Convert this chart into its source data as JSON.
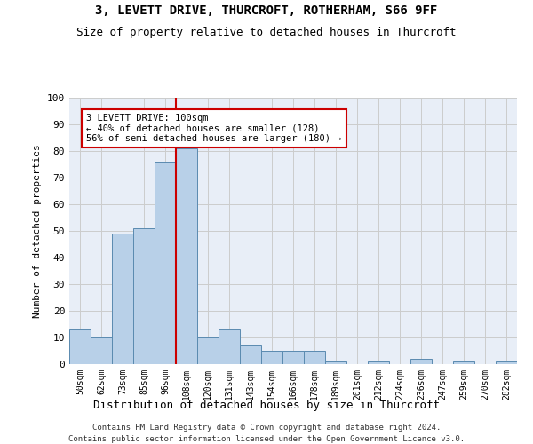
{
  "title": "3, LEVETT DRIVE, THURCROFT, ROTHERHAM, S66 9FF",
  "subtitle": "Size of property relative to detached houses in Thurcroft",
  "xlabel": "Distribution of detached houses by size in Thurcroft",
  "ylabel": "Number of detached properties",
  "bar_color": "#b8d0e8",
  "bar_edge_color": "#5a8ab0",
  "categories": [
    "50sqm",
    "62sqm",
    "73sqm",
    "85sqm",
    "96sqm",
    "108sqm",
    "120sqm",
    "131sqm",
    "143sqm",
    "154sqm",
    "166sqm",
    "178sqm",
    "189sqm",
    "201sqm",
    "212sqm",
    "224sqm",
    "236sqm",
    "247sqm",
    "259sqm",
    "270sqm",
    "282sqm"
  ],
  "values": [
    13,
    10,
    49,
    51,
    76,
    81,
    10,
    13,
    7,
    5,
    5,
    5,
    1,
    0,
    1,
    0,
    2,
    0,
    1,
    0,
    1
  ],
  "annotation_text": "3 LEVETT DRIVE: 100sqm\n← 40% of detached houses are smaller (128)\n56% of semi-detached houses are larger (180) →",
  "annotation_box_color": "#cc0000",
  "ylim": [
    0,
    100
  ],
  "yticks": [
    0,
    10,
    20,
    30,
    40,
    50,
    60,
    70,
    80,
    90,
    100
  ],
  "grid_color": "#cccccc",
  "background_color": "#e8eef7",
  "footer1": "Contains HM Land Registry data © Crown copyright and database right 2024.",
  "footer2": "Contains public sector information licensed under the Open Government Licence v3.0."
}
